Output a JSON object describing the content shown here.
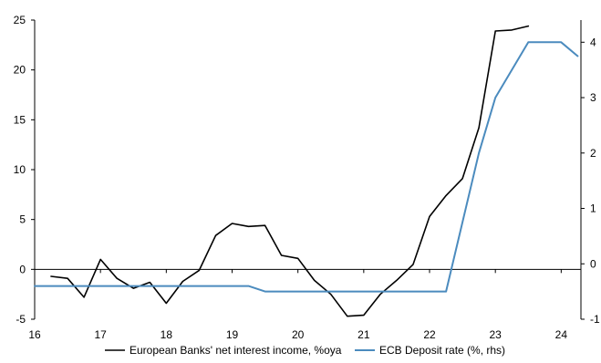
{
  "chart_data": {
    "type": "line",
    "title": "",
    "xlabel": "",
    "ylabel_left": "",
    "ylabel_right": "",
    "xlim": [
      16,
      24.3
    ],
    "ylim_left": [
      -5,
      25
    ],
    "ylim_right": [
      -1,
      4.4
    ],
    "x_ticks": [
      "16",
      "17",
      "18",
      "19",
      "20",
      "21",
      "22",
      "23",
      "24"
    ],
    "y_left_ticks": [
      "-5",
      "0",
      "5",
      "10",
      "15",
      "20",
      "25"
    ],
    "y_right_ticks": [
      "-1",
      "0",
      "1",
      "2",
      "3",
      "4"
    ],
    "grid": false,
    "legend_position": "bottom",
    "series": [
      {
        "name": "European Banks' net interest income, %oya",
        "axis": "left",
        "color": "#000000",
        "x": [
          16.25,
          16.5,
          16.75,
          17.0,
          17.25,
          17.5,
          17.75,
          18.0,
          18.25,
          18.5,
          18.75,
          19.0,
          19.25,
          19.5,
          19.75,
          20.0,
          20.25,
          20.5,
          20.75,
          21.0,
          21.25,
          21.5,
          21.75,
          22.0,
          22.25,
          22.5,
          22.75,
          23.0,
          23.25,
          23.5
        ],
        "y": [
          -0.7,
          -0.9,
          -2.8,
          1.0,
          -0.9,
          -1.9,
          -1.3,
          -3.4,
          -1.2,
          -0.1,
          3.4,
          4.6,
          4.3,
          4.4,
          1.4,
          1.1,
          -1.1,
          -2.5,
          -4.7,
          -4.6,
          -2.5,
          -1.1,
          0.5,
          5.3,
          7.4,
          9.1,
          14.2,
          23.9,
          24.0,
          24.4
        ]
      },
      {
        "name": "ECB Deposit rate (%, rhs)",
        "axis": "right",
        "color": "#4b8bbe",
        "x": [
          16.0,
          19.25,
          19.5,
          22.25,
          22.75,
          23.0,
          23.5,
          24.0,
          24.25
        ],
        "y": [
          -0.4,
          -0.4,
          -0.5,
          -0.5,
          2.0,
          3.0,
          4.0,
          4.0,
          3.75
        ]
      }
    ]
  }
}
